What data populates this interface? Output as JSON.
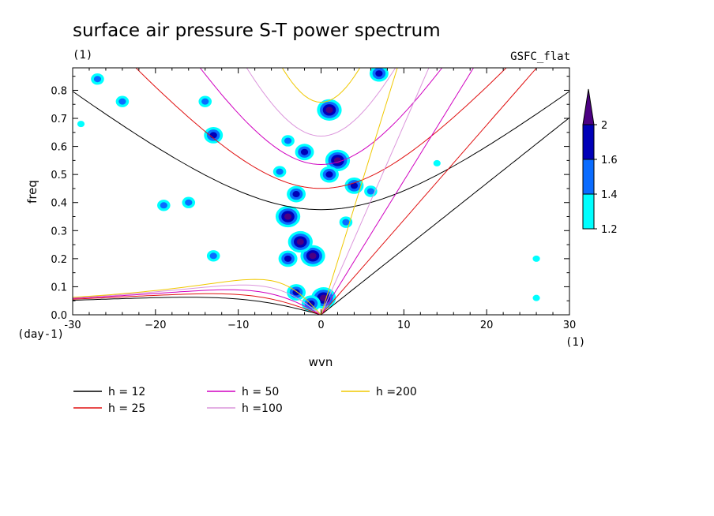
{
  "chart_data": {
    "type": "contour",
    "title": "surface air pressure S-T power spectrum",
    "title_units": "(1)",
    "model_label": "GSFC_flat",
    "xlabel": "wvn",
    "ylabel": "freq",
    "x_units": "(1)",
    "y_units": "(day-1)",
    "xlim": [
      -30,
      30
    ],
    "ylim": [
      0,
      0.88
    ],
    "xticks": [
      -30,
      -20,
      -10,
      0,
      10,
      20,
      30
    ],
    "xtick_labels": [
      "-30",
      "−20",
      "−10",
      "0",
      "10",
      "20",
      "30"
    ],
    "yticks": [
      0,
      0.1,
      0.2,
      0.3,
      0.4,
      0.5,
      0.6,
      0.7,
      0.8
    ],
    "ytick_labels": [
      "0.0",
      "0.1",
      "0.2",
      "0.3",
      "0.4",
      "0.5",
      "0.6",
      "0.7",
      "0.8"
    ],
    "colorbar": {
      "levels": [
        1.2,
        1.4,
        1.6,
        2
      ],
      "level_labels": [
        "1.2",
        "1.4",
        "1.6",
        "2"
      ],
      "colors": [
        "#00ffff",
        "#0a6cff",
        "#0000b8",
        "#4b0082"
      ]
    },
    "dispersion_curves": [
      {
        "label": "h = 12",
        "h": 12,
        "color": "#000000"
      },
      {
        "label": "h = 25",
        "h": 25,
        "color": "#e01010"
      },
      {
        "label": "h = 50",
        "h": 50,
        "color": "#d000c0"
      },
      {
        "label": "h =100",
        "h": 100,
        "color": "#dc96dc"
      },
      {
        "label": "h =200",
        "h": 200,
        "color": "#f0c800"
      }
    ],
    "spectral_blobs": [
      {
        "wvn": 1,
        "freq": 0.73,
        "level": 2
      },
      {
        "wvn": 0.3,
        "freq": 0.06,
        "level": 2
      },
      {
        "wvn": -1.2,
        "freq": 0.04,
        "level": 1.6
      },
      {
        "wvn": -3,
        "freq": 0.08,
        "level": 1.6
      },
      {
        "wvn": -1,
        "freq": 0.21,
        "level": 2
      },
      {
        "wvn": -2.5,
        "freq": 0.26,
        "level": 2
      },
      {
        "wvn": -4,
        "freq": 0.2,
        "level": 1.6
      },
      {
        "wvn": -4,
        "freq": 0.35,
        "level": 2
      },
      {
        "wvn": -3,
        "freq": 0.43,
        "level": 1.6
      },
      {
        "wvn": 2,
        "freq": 0.55,
        "level": 2
      },
      {
        "wvn": 1,
        "freq": 0.5,
        "level": 1.6
      },
      {
        "wvn": -2,
        "freq": 0.58,
        "level": 1.6
      },
      {
        "wvn": 4,
        "freq": 0.46,
        "level": 1.6
      },
      {
        "wvn": 6,
        "freq": 0.44,
        "level": 1.4
      },
      {
        "wvn": 7,
        "freq": 0.86,
        "level": 1.6
      },
      {
        "wvn": -5,
        "freq": 0.51,
        "level": 1.4
      },
      {
        "wvn": -4,
        "freq": 0.62,
        "level": 1.4
      },
      {
        "wvn": -13,
        "freq": 0.64,
        "level": 1.6
      },
      {
        "wvn": -13,
        "freq": 0.21,
        "level": 1.4
      },
      {
        "wvn": -16,
        "freq": 0.4,
        "level": 1.4
      },
      {
        "wvn": -19,
        "freq": 0.39,
        "level": 1.4
      },
      {
        "wvn": -24,
        "freq": 0.76,
        "level": 1.4
      },
      {
        "wvn": -27,
        "freq": 0.84,
        "level": 1.4
      },
      {
        "wvn": -14,
        "freq": 0.76,
        "level": 1.4
      },
      {
        "wvn": 3,
        "freq": 0.33,
        "level": 1.4
      },
      {
        "wvn": 26,
        "freq": 0.2,
        "level": 1.2
      },
      {
        "wvn": 26,
        "freq": 0.06,
        "level": 1.2
      },
      {
        "wvn": -29,
        "freq": 0.68,
        "level": 1.2
      },
      {
        "wvn": 14,
        "freq": 0.54,
        "level": 1.2
      }
    ]
  }
}
